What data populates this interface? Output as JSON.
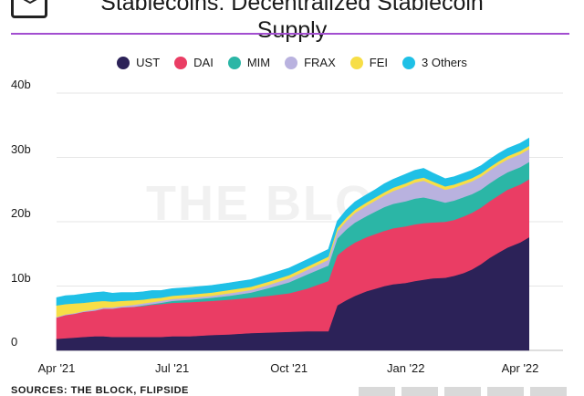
{
  "title_line1": "Stablecoins: Decentralized Stablecoin",
  "title_line2": "Supply",
  "footer": "SOURCES: THE BLOCK, FLIPSIDE",
  "watermark": "THE BLOCK",
  "chart_data": {
    "type": "area",
    "stacked": true,
    "x": [
      "2021-04-01",
      "2021-04-08",
      "2021-04-15",
      "2021-04-22",
      "2021-05-01",
      "2021-05-08",
      "2021-05-15",
      "2021-05-22",
      "2021-06-01",
      "2021-06-08",
      "2021-06-15",
      "2021-06-22",
      "2021-07-01",
      "2021-07-15",
      "2021-08-01",
      "2021-08-15",
      "2021-09-01",
      "2021-09-15",
      "2021-10-01",
      "2021-10-15",
      "2021-11-01",
      "2021-11-08",
      "2021-11-15",
      "2021-11-22",
      "2021-12-01",
      "2021-12-08",
      "2021-12-15",
      "2021-12-22",
      "2022-01-01",
      "2022-01-08",
      "2022-01-15",
      "2022-01-22",
      "2022-02-01",
      "2022-02-08",
      "2022-02-15",
      "2022-02-22",
      "2022-03-01",
      "2022-03-08",
      "2022-03-15",
      "2022-03-22",
      "2022-04-01",
      "2022-04-08"
    ],
    "series": [
      {
        "name": "UST",
        "color": "#2c2258",
        "values": [
          1.8,
          1.9,
          2.0,
          2.1,
          2.2,
          2.2,
          2.1,
          2.1,
          2.1,
          2.1,
          2.1,
          2.1,
          2.2,
          2.2,
          2.4,
          2.5,
          2.7,
          2.8,
          2.9,
          3.0,
          3.0,
          7.0,
          7.8,
          8.5,
          9.2,
          9.6,
          10.0,
          10.3,
          10.5,
          10.8,
          11.0,
          11.2,
          11.3,
          11.6,
          12.0,
          12.6,
          13.4,
          14.4,
          15.2,
          16.0,
          16.8,
          17.6
        ]
      },
      {
        "name": "DAI",
        "color": "#ea3d64",
        "values": [
          3.3,
          3.6,
          3.7,
          3.9,
          4.0,
          4.3,
          4.4,
          4.6,
          4.7,
          4.8,
          5.0,
          5.1,
          5.2,
          5.3,
          5.3,
          5.4,
          5.5,
          5.7,
          6.0,
          6.6,
          7.8,
          7.8,
          8.1,
          8.3,
          8.4,
          8.5,
          8.6,
          8.7,
          8.8,
          8.8,
          8.8,
          8.7,
          8.7,
          8.7,
          8.8,
          8.8,
          8.8,
          8.8,
          8.9,
          9.0,
          9.0,
          9.0
        ]
      },
      {
        "name": "MIM",
        "color": "#2bb6a6",
        "values": [
          0.0,
          0.0,
          0.0,
          0.0,
          0.0,
          0.0,
          0.0,
          0.0,
          0.0,
          0.1,
          0.1,
          0.2,
          0.3,
          0.4,
          0.5,
          0.6,
          0.8,
          1.2,
          1.7,
          2.2,
          2.4,
          2.6,
          2.9,
          3.1,
          3.3,
          3.5,
          3.7,
          3.8,
          3.9,
          4.0,
          4.0,
          3.6,
          3.0,
          3.0,
          3.0,
          2.9,
          2.8,
          2.8,
          2.8,
          2.7,
          2.7,
          2.7
        ]
      },
      {
        "name": "FRAX",
        "color": "#b9b2df",
        "values": [
          0.1,
          0.1,
          0.1,
          0.1,
          0.2,
          0.2,
          0.2,
          0.2,
          0.3,
          0.3,
          0.3,
          0.3,
          0.3,
          0.3,
          0.3,
          0.4,
          0.4,
          0.5,
          0.6,
          0.7,
          0.9,
          1.1,
          1.3,
          1.5,
          1.6,
          1.7,
          1.8,
          2.0,
          2.3,
          2.5,
          2.6,
          2.3,
          2.0,
          2.0,
          2.0,
          2.0,
          2.0,
          2.0,
          2.0,
          2.0,
          2.0,
          2.0
        ]
      },
      {
        "name": "FEI",
        "color": "#f7de46",
        "values": [
          1.8,
          1.6,
          1.5,
          1.3,
          1.2,
          1.0,
          0.9,
          0.8,
          0.7,
          0.6,
          0.6,
          0.5,
          0.5,
          0.5,
          0.5,
          0.5,
          0.5,
          0.5,
          0.5,
          0.5,
          0.5,
          0.5,
          0.5,
          0.5,
          0.5,
          0.5,
          0.5,
          0.5,
          0.5,
          0.5,
          0.5,
          0.5,
          0.5,
          0.5,
          0.5,
          0.5,
          0.5,
          0.5,
          0.5,
          0.5,
          0.5,
          0.5
        ]
      },
      {
        "name": "3 Others",
        "color": "#1fc0e6",
        "values": [
          1.2,
          1.3,
          1.3,
          1.4,
          1.4,
          1.4,
          1.3,
          1.3,
          1.2,
          1.2,
          1.2,
          1.1,
          1.1,
          1.1,
          1.1,
          1.1,
          1.1,
          1.1,
          1.1,
          1.1,
          1.1,
          1.1,
          1.2,
          1.2,
          1.2,
          1.2,
          1.3,
          1.3,
          1.4,
          1.4,
          1.4,
          1.3,
          1.2,
          1.2,
          1.2,
          1.2,
          1.2,
          1.2,
          1.2,
          1.2,
          1.2,
          1.2
        ]
      }
    ],
    "y_ticks": [
      {
        "label": "40b",
        "value": 40
      },
      {
        "label": "30b",
        "value": 30
      },
      {
        "label": "20b",
        "value": 20
      },
      {
        "label": "10b",
        "value": 10
      },
      {
        "label": "0",
        "value": 0
      }
    ],
    "x_ticks": [
      {
        "label": "Apr '21",
        "value": "2021-04-01"
      },
      {
        "label": "Jul '21",
        "value": "2021-07-01"
      },
      {
        "label": "Oct '21",
        "value": "2021-10-01"
      },
      {
        "label": "Jan '22",
        "value": "2022-01-01"
      },
      {
        "label": "Apr '22",
        "value": "2022-04-01"
      }
    ],
    "ylim": [
      0,
      40
    ],
    "grid": true,
    "legend_position": "top"
  }
}
